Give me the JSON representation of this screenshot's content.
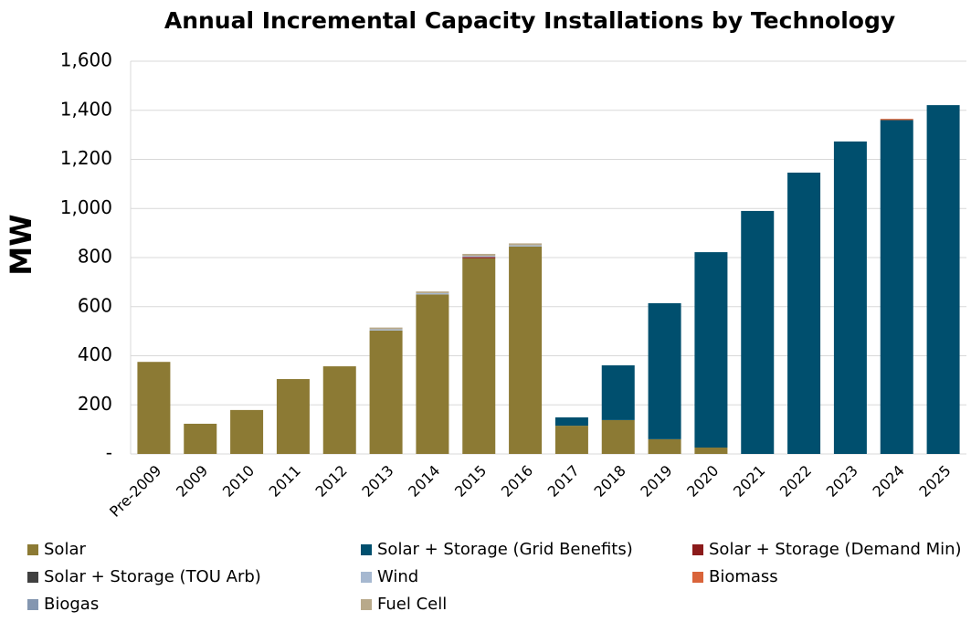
{
  "chart_data": {
    "type": "stacked_bar",
    "title": "Annual Incremental Capacity Installations by Technology",
    "y_label": "MW",
    "categories": [
      "Pre-2009",
      "2009",
      "2010",
      "2011",
      "2012",
      "2013",
      "2014",
      "2015",
      "2016",
      "2017",
      "2018",
      "2019",
      "2020",
      "2021",
      "2022",
      "2023",
      "2024",
      "2025"
    ],
    "series": [
      {
        "name": "Solar",
        "color": "#8c7a34",
        "values": [
          375,
          123,
          179,
          305,
          357,
          503,
          650,
          797,
          845,
          115,
          138,
          60,
          26,
          0,
          0,
          0,
          0,
          0
        ]
      },
      {
        "name": "Solar + Storage (Grid Benefits)",
        "color": "#004f6e",
        "values": [
          0,
          0,
          0,
          0,
          0,
          0,
          0,
          0,
          0,
          34,
          223,
          554,
          796,
          990,
          1146,
          1273,
          1360,
          1421
        ]
      },
      {
        "name": "Solar + Storage (Demand Min)",
        "color": "#8b1a1a",
        "values": [
          0,
          0,
          0,
          0,
          0,
          0,
          0,
          5,
          0,
          0,
          0,
          0,
          0,
          0,
          0,
          0,
          0,
          0
        ]
      },
      {
        "name": "Solar + Storage (TOU Arb)",
        "color": "#404040",
        "values": [
          0,
          0,
          0,
          0,
          0,
          0,
          0,
          0,
          0,
          0,
          0,
          0,
          0,
          0,
          0,
          0,
          0,
          0
        ]
      },
      {
        "name": "Wind",
        "color": "#a6b8d0",
        "values": [
          0,
          0,
          0,
          0,
          0,
          5,
          5,
          5,
          5,
          0,
          0,
          0,
          0,
          0,
          0,
          0,
          0,
          0
        ]
      },
      {
        "name": "Biomass",
        "color": "#d9643a",
        "values": [
          0,
          0,
          0,
          0,
          0,
          0,
          0,
          0,
          0,
          0,
          0,
          0,
          0,
          0,
          0,
          0,
          5,
          0
        ]
      },
      {
        "name": "Biogas",
        "color": "#8496b0",
        "values": [
          0,
          0,
          0,
          0,
          0,
          0,
          0,
          0,
          0,
          0,
          0,
          0,
          0,
          0,
          0,
          0,
          0,
          0
        ]
      },
      {
        "name": "Fuel Cell",
        "color": "#b8a98a",
        "values": [
          0,
          0,
          0,
          0,
          0,
          7,
          7,
          8,
          8,
          0,
          0,
          0,
          0,
          0,
          0,
          0,
          0,
          0
        ]
      }
    ],
    "ylim": [
      0,
      1600
    ],
    "yticks": [
      {
        "value": 0,
        "label": "-"
      },
      200,
      400,
      600,
      800,
      {
        "value": 1000,
        "label": "1,000"
      },
      {
        "value": 1200,
        "label": "1,200"
      },
      {
        "value": 1400,
        "label": "1,400"
      },
      {
        "value": 1600,
        "label": "1,600"
      }
    ],
    "grid": true
  }
}
